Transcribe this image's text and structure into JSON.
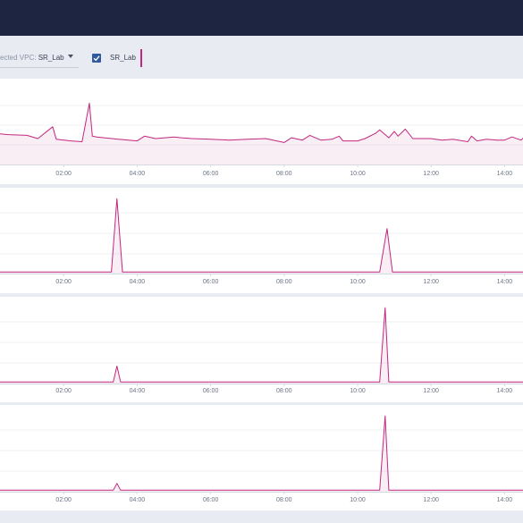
{
  "filter": {
    "vpc_label": "ected VPC: ",
    "vpc_value": "SR_Lab",
    "legend_item": "SR_Lab"
  },
  "colors": {
    "topbar": "#1e2540",
    "series": "#c2277f",
    "checkbox": "#2f5b9e"
  },
  "icons": {
    "checkbox": "check-icon",
    "dropdown": "chevron-down-icon"
  },
  "x_ticks": [
    "02:00",
    "04:00",
    "06:00",
    "08:00",
    "10:00",
    "12:00",
    "14:00"
  ],
  "chart_data": [
    {
      "type": "area",
      "series": [
        {
          "name": "SR_Lab",
          "x": [
            0,
            0.5,
            1,
            1.3,
            1.7,
            1.8,
            2.2,
            2.5,
            2.7,
            2.78,
            2.9,
            3.1,
            3.5,
            4,
            4.2,
            4.5,
            5,
            5.2,
            5.5,
            6,
            6.5,
            7,
            7.5,
            8,
            8.2,
            8.5,
            8.7,
            9,
            9.3,
            9.5,
            9.6,
            10,
            10.2,
            10.5,
            10.6,
            10.85,
            11,
            11.1,
            11.3,
            11.5,
            12,
            12.3,
            12.6,
            13,
            13.1,
            13.25,
            13.5,
            13.8,
            14,
            14.2,
            14.45,
            14.7,
            15
          ],
          "values": [
            40,
            38,
            37,
            33,
            48,
            32,
            30,
            29,
            78,
            36,
            35,
            34,
            32,
            30,
            36,
            33,
            35,
            34,
            33,
            32,
            31,
            32,
            33,
            28,
            34,
            31,
            37,
            31,
            32,
            36,
            30,
            30,
            33,
            40,
            44,
            34,
            42,
            36,
            45,
            33,
            33,
            31,
            32,
            29,
            36,
            30,
            32,
            31,
            31,
            35,
            31,
            43,
            36
          ]
        }
      ]
    },
    {
      "type": "area",
      "series": [
        {
          "name": "SR_Lab",
          "x": [
            0,
            2,
            3.3,
            3.45,
            3.6,
            10.6,
            10.8,
            10.95,
            15
          ],
          "values": [
            2,
            2,
            2,
            100,
            2,
            2,
            60,
            2,
            2
          ]
        }
      ]
    },
    {
      "type": "area",
      "series": [
        {
          "name": "SR_Lab",
          "x": [
            0,
            3,
            3.35,
            3.45,
            3.55,
            10.6,
            10.75,
            10.85,
            15
          ],
          "values": [
            2,
            2,
            2,
            23,
            2,
            2,
            100,
            2,
            2
          ]
        }
      ]
    },
    {
      "type": "area",
      "series": [
        {
          "name": "SR_Lab",
          "x": [
            0,
            3,
            3.35,
            3.45,
            3.55,
            10.6,
            10.75,
            10.85,
            15
          ],
          "values": [
            2,
            2,
            2,
            11,
            2,
            2,
            100,
            2,
            2
          ]
        }
      ]
    }
  ]
}
